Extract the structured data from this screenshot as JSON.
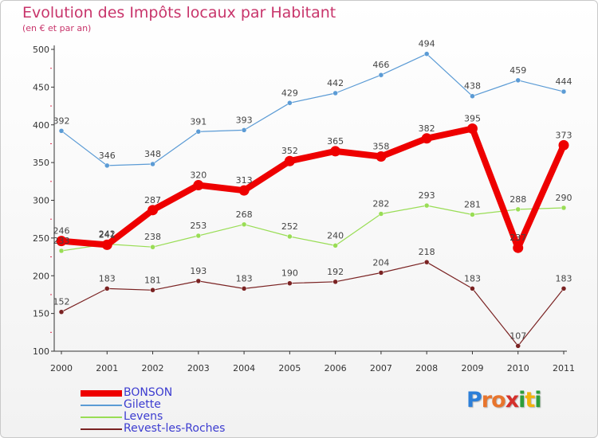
{
  "title": "Evolution des Impôts locaux par Habitant",
  "subtitle": "(en € et par an)",
  "chart_data": {
    "type": "line",
    "title": "Evolution des Impôts locaux par Habitant",
    "subtitle": "(en € et par an)",
    "categories": [
      "2000",
      "2001",
      "2002",
      "2003",
      "2004",
      "2005",
      "2006",
      "2007",
      "2008",
      "2009",
      "2010",
      "2011"
    ],
    "ylim": [
      100,
      500
    ],
    "yticks": [
      100,
      150,
      200,
      250,
      300,
      350,
      400,
      450,
      500
    ],
    "grid": false,
    "legend_position": "bottom-left",
    "series": [
      {
        "name": "BONSON",
        "color": "#ee0000",
        "values": [
          246,
          241,
          287,
          320,
          313,
          352,
          365,
          358,
          382,
          395,
          237,
          373
        ],
        "labels": [
          "246",
          "241",
          "287",
          "320",
          "313",
          "352",
          "365",
          "358",
          "382",
          "395",
          "237",
          "373"
        ]
      },
      {
        "name": "Gilette",
        "color": "#5b9bd5",
        "values": [
          392,
          346,
          348,
          391,
          393,
          429,
          442,
          466,
          494,
          438,
          459,
          444
        ],
        "labels": [
          "392",
          "346",
          "348",
          "391",
          "393",
          "429",
          "442",
          "466",
          "494",
          "438",
          "459",
          "444"
        ]
      },
      {
        "name": "Levens",
        "color": "#99dd55",
        "values": [
          233,
          242,
          238,
          253,
          268,
          252,
          240,
          282,
          293,
          281,
          288,
          290
        ],
        "labels": [
          "233",
          "242",
          "238",
          "253",
          "268",
          "252",
          "240",
          "282",
          "293",
          "281",
          "288",
          "290"
        ]
      },
      {
        "name": "Revest-les-Roches",
        "color": "#7a2222",
        "values": [
          152,
          183,
          181,
          193,
          183,
          190,
          192,
          204,
          218,
          183,
          107,
          183
        ],
        "labels": [
          "152",
          "183",
          "181",
          "193",
          "183",
          "190",
          "192",
          "204",
          "218",
          "183",
          "107",
          "183"
        ]
      }
    ]
  },
  "logo": {
    "letters": [
      {
        "char": "P",
        "color": "#2d7fd8"
      },
      {
        "char": "r",
        "color": "#e8752d"
      },
      {
        "char": "o",
        "color": "#e8752d"
      },
      {
        "char": "x",
        "color": "#d4302b"
      },
      {
        "char": "i",
        "color": "#2d9e3a"
      },
      {
        "char": "t",
        "color": "#f2b20e"
      },
      {
        "char": "i",
        "color": "#2d9e3a"
      }
    ]
  }
}
